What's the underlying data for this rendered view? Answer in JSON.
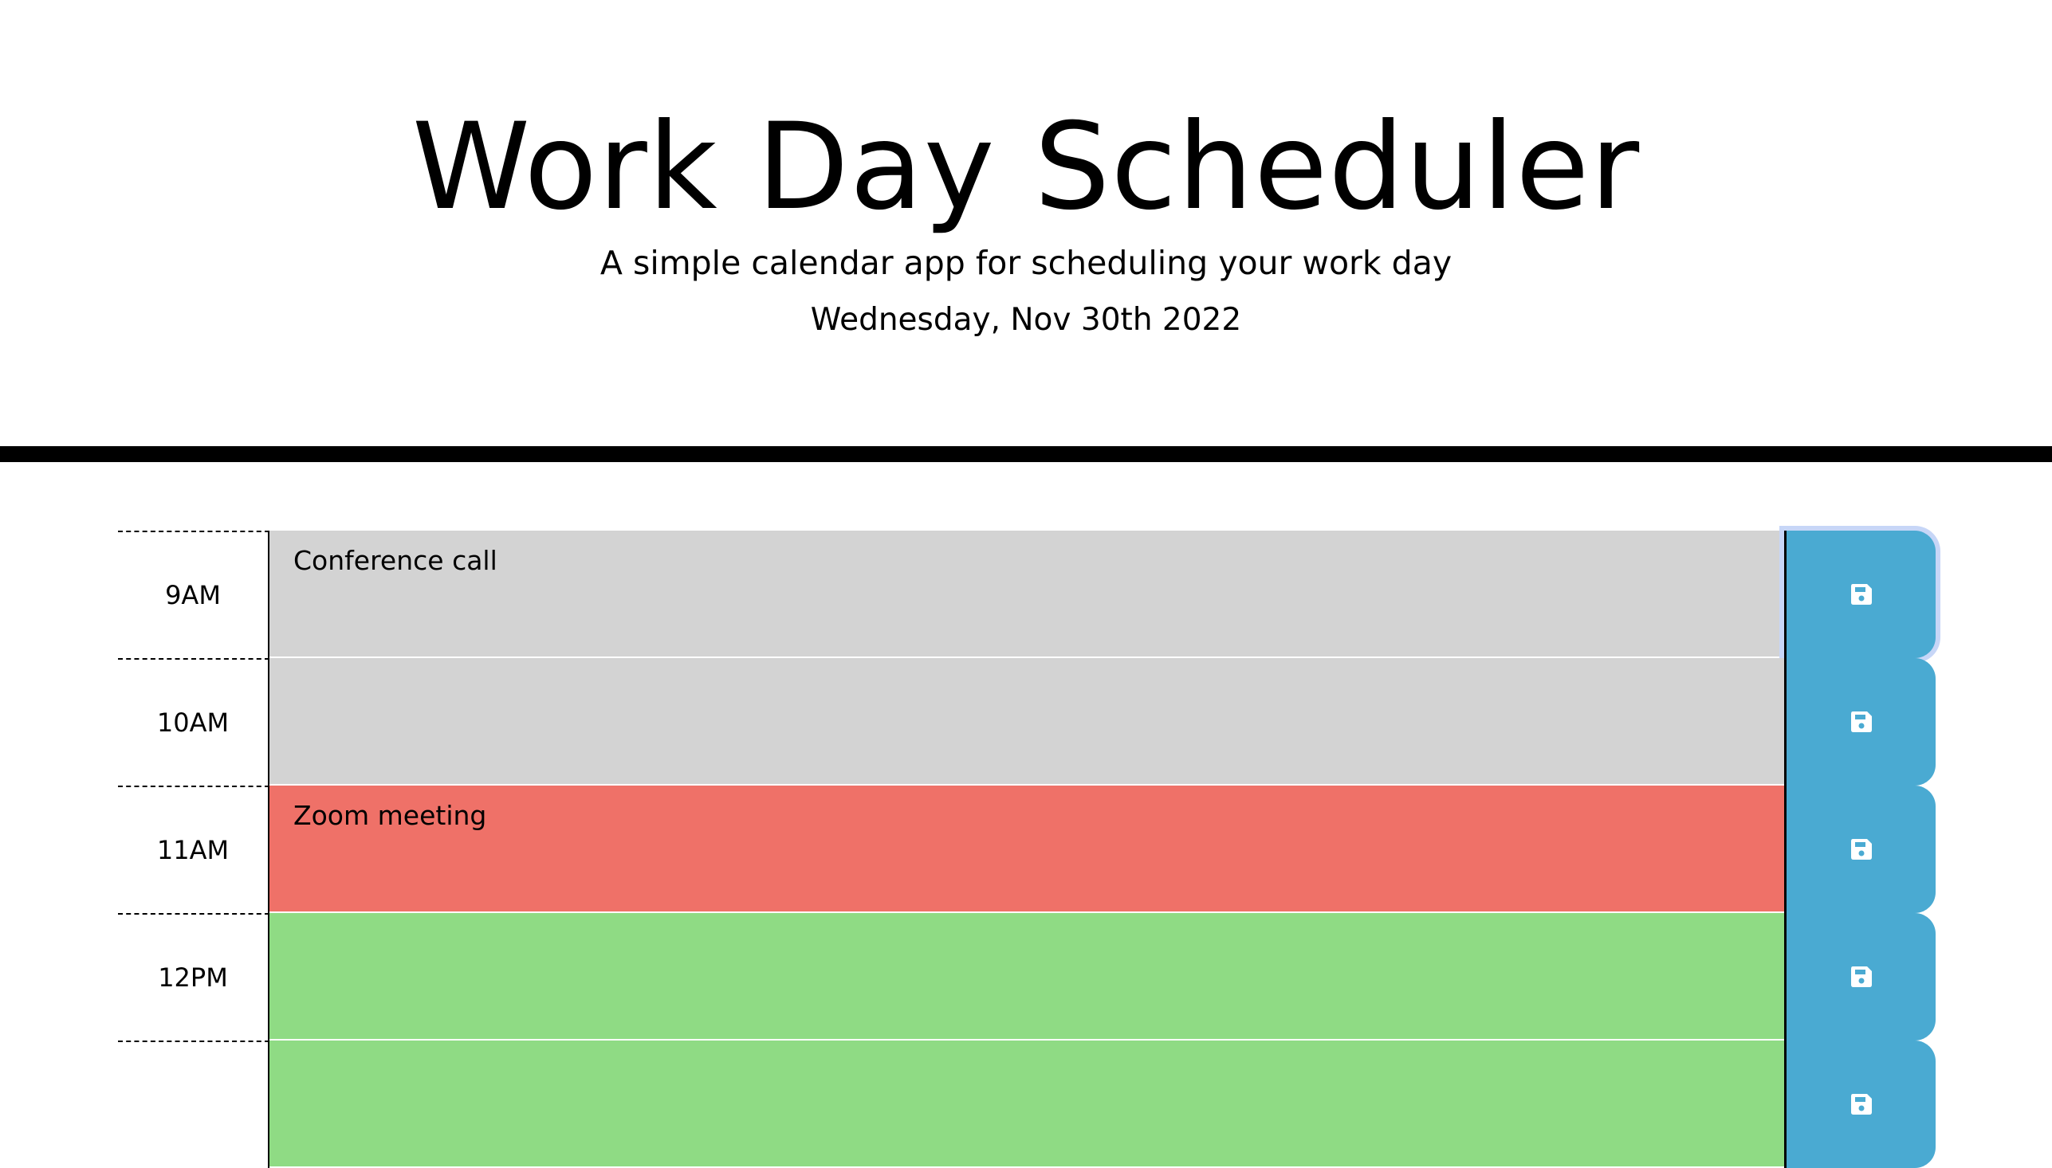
{
  "header": {
    "title": "Work Day Scheduler",
    "subtitle": "A simple calendar app for scheduling your work day",
    "current_day": "Wednesday, Nov 30th 2022"
  },
  "colors": {
    "past": "#d3d3d3",
    "present": "#ef7168",
    "future": "#8fdb84",
    "save_button": "#4aaad2"
  },
  "time_blocks": [
    {
      "hour": "9AM",
      "text": "Conference call",
      "status": "past",
      "icon": "save-icon"
    },
    {
      "hour": "10AM",
      "text": "",
      "status": "past",
      "icon": "save-icon"
    },
    {
      "hour": "11AM",
      "text": "Zoom meeting",
      "status": "present",
      "icon": "save-icon"
    },
    {
      "hour": "12PM",
      "text": "",
      "status": "future",
      "icon": "save-icon"
    },
    {
      "hour": "",
      "text": "",
      "status": "future",
      "icon": "save-icon"
    }
  ]
}
